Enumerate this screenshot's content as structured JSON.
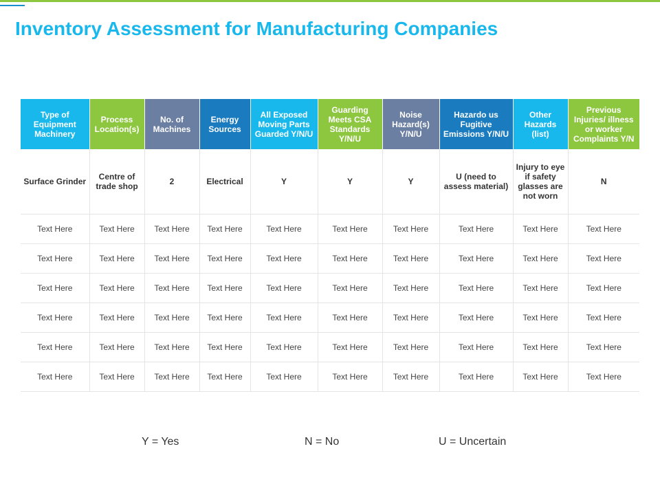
{
  "title": "Inventory Assessment for Manufacturing Companies",
  "colors": {
    "cyan": "#19b8ec",
    "green": "#8dc63f",
    "slate": "#6a7fa2",
    "blue": "#1a7bbf"
  },
  "table": {
    "headers": [
      "Type of Equipment Machinery",
      "Process Location(s)",
      "No. of Machines",
      "Energy Sources",
      "All Exposed Moving Parts Guarded Y/N/U",
      "Guarding Meets CSA Standards Y/N/U",
      "Noise Hazard(s) Y/N/U",
      "Hazardo us Fugitive Emissions Y/N/U",
      "Other Hazards (list)",
      "Previous Injuries/ illness or worker Complaints Y/N"
    ],
    "first_row": [
      "Surface Grinder",
      "Centre of trade shop",
      "2",
      "Electrical",
      "Y",
      "Y",
      "Y",
      "U (need to assess material)",
      "Injury to eye if safety glasses are not worn",
      "N"
    ],
    "placeholder_rows": [
      [
        "Text Here",
        "Text Here",
        "Text Here",
        "Text Here",
        "Text Here",
        "Text Here",
        "Text Here",
        "Text Here",
        "Text Here",
        "Text Here"
      ],
      [
        "Text Here",
        "Text Here",
        "Text Here",
        "Text Here",
        "Text Here",
        "Text Here",
        "Text Here",
        "Text Here",
        "Text Here",
        "Text Here"
      ],
      [
        "Text Here",
        "Text Here",
        "Text Here",
        "Text Here",
        "Text Here",
        "Text Here",
        "Text Here",
        "Text Here",
        "Text Here",
        "Text Here"
      ],
      [
        "Text Here",
        "Text Here",
        "Text Here",
        "Text Here",
        "Text Here",
        "Text Here",
        "Text Here",
        "Text Here",
        "Text Here",
        "Text Here"
      ],
      [
        "Text Here",
        "Text Here",
        "Text Here",
        "Text Here",
        "Text Here",
        "Text Here",
        "Text Here",
        "Text Here",
        "Text Here",
        "Text Here"
      ],
      [
        "Text Here",
        "Text Here",
        "Text Here",
        "Text Here",
        "Text Here",
        "Text Here",
        "Text Here",
        "Text Here",
        "Text Here",
        "Text Here"
      ]
    ]
  },
  "legend": {
    "yes": "Y = Yes",
    "no": "N = No",
    "uncertain": "U = Uncertain"
  }
}
